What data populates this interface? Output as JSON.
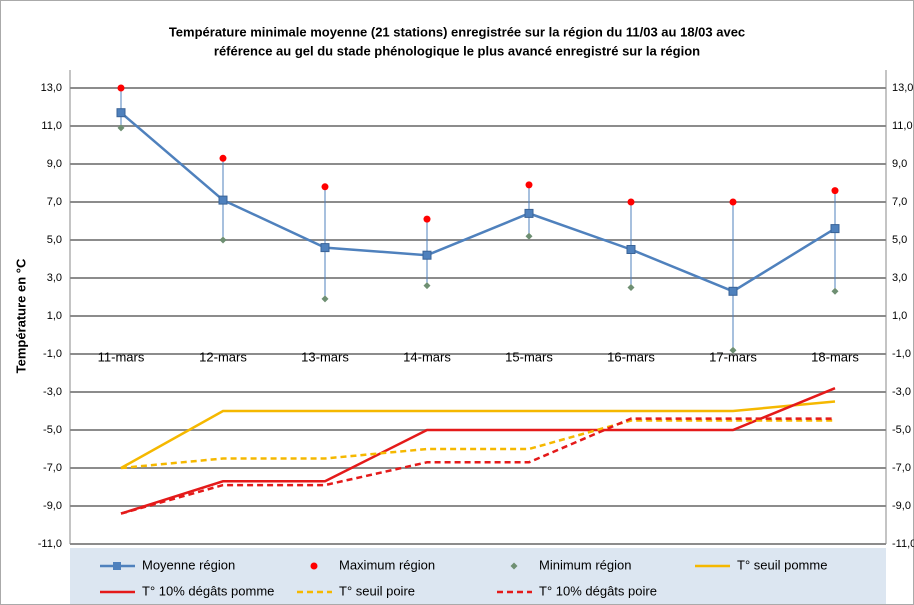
{
  "chart_data": {
    "type": "line",
    "title": [
      "Température minimale moyenne (21 stations) enregistrée sur la région du 11/03 au 18/03 avec",
      "référence au gel du stade phénologique le plus avancé enregistré sur la région"
    ],
    "y_label": "Température en °C",
    "categories": [
      "11-mars",
      "12-mars",
      "13-mars",
      "14-mars",
      "15-mars",
      "16-mars",
      "17-mars",
      "18-mars"
    ],
    "ylim": [
      -11,
      13
    ],
    "yticks": [
      {
        "value": -11,
        "label": "-11,0"
      },
      {
        "value": -9,
        "label": "-9,0"
      },
      {
        "value": -7,
        "label": "-7,0"
      },
      {
        "value": -5,
        "label": "-5,0"
      },
      {
        "value": -3,
        "label": "-3,0"
      },
      {
        "value": -1,
        "label": "-1,0"
      },
      {
        "value": 1,
        "label": "1,0"
      },
      {
        "value": 3,
        "label": "3,0"
      },
      {
        "value": 5,
        "label": "5,0"
      },
      {
        "value": 7,
        "label": "7,0"
      },
      {
        "value": 9,
        "label": "9,0"
      },
      {
        "value": 11,
        "label": "11,0"
      },
      {
        "value": 13,
        "label": "13,0"
      }
    ],
    "grid": true,
    "hilo_lines": true,
    "category_axis_at": -1,
    "legend": "bottom",
    "series": [
      {
        "name": "Moyenne région",
        "color": "#4f81bd",
        "marker": "square",
        "line": true,
        "dash": false,
        "values": [
          11.7,
          7.1,
          4.6,
          4.2,
          6.4,
          4.5,
          2.3,
          5.6
        ]
      },
      {
        "name": "Maximum région",
        "color": "#ff0000",
        "marker": "circle",
        "line": false,
        "dash": false,
        "values": [
          13.0,
          9.3,
          7.8,
          6.1,
          7.9,
          7.0,
          7.0,
          7.6
        ]
      },
      {
        "name": "Minimum région",
        "color": "#6e8f72",
        "marker": "diamond",
        "line": false,
        "dash": false,
        "values": [
          10.9,
          5.0,
          1.9,
          2.6,
          5.2,
          2.5,
          -0.8,
          2.3
        ]
      },
      {
        "name": "T° seuil pomme",
        "color": "#f5b800",
        "marker": "none",
        "line": true,
        "dash": false,
        "values": [
          -7,
          -4,
          -4,
          -4,
          -4,
          -4,
          -4,
          -3.5
        ]
      },
      {
        "name": "T° 10% dégâts pomme",
        "color": "#e41a1a",
        "marker": "none",
        "line": true,
        "dash": false,
        "values": [
          -9.4,
          -7.7,
          -7.7,
          -5,
          -5,
          -5,
          -5,
          -2.8
        ]
      },
      {
        "name": "T° seuil poire",
        "color": "#f5b800",
        "marker": "none",
        "line": true,
        "dash": true,
        "values": [
          -7,
          -6.5,
          -6.5,
          -6,
          -6,
          -4.5,
          -4.5,
          -4.5
        ]
      },
      {
        "name": "T° 10% dégâts poire",
        "color": "#e41a1a",
        "marker": "none",
        "line": true,
        "dash": true,
        "values": [
          -9.4,
          -7.9,
          -7.9,
          -6.7,
          -6.7,
          -4.4,
          -4.4,
          -4.4
        ]
      }
    ]
  }
}
